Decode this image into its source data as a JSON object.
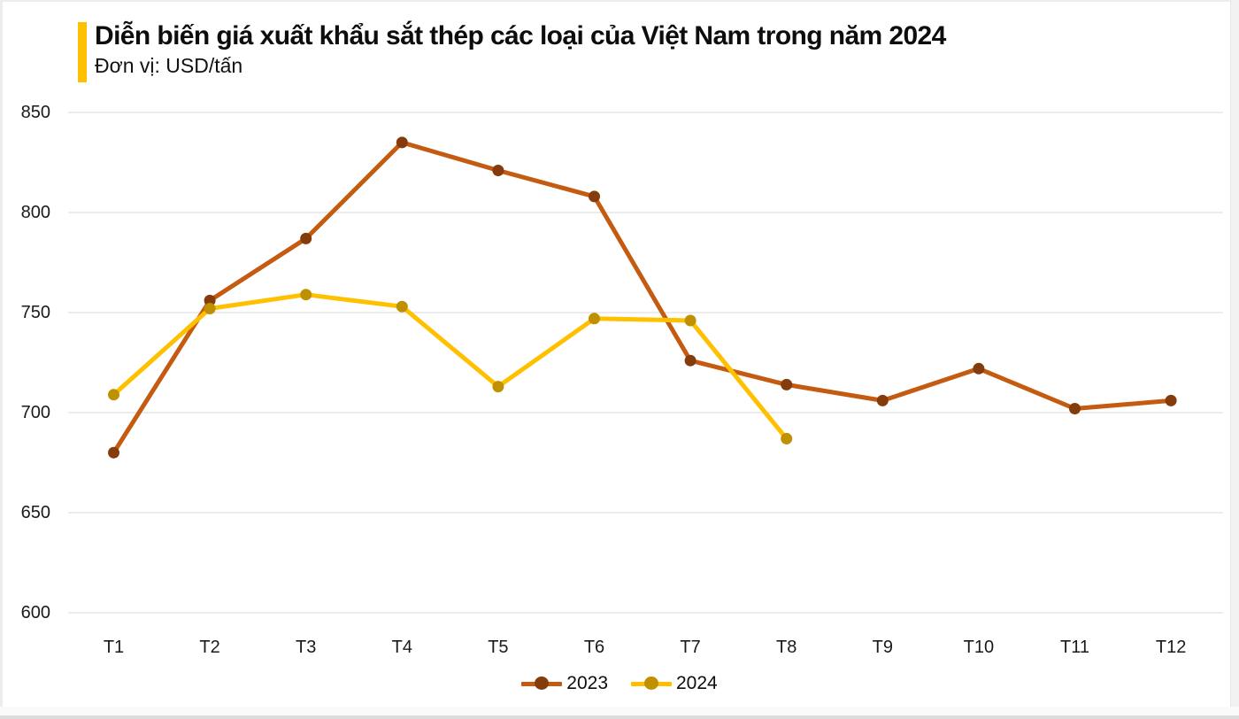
{
  "header": {
    "title": "Diễn biến giá xuất khẩu sắt thép các loại của Việt Nam trong năm 2024",
    "subtitle": "Đơn vị: USD/tấn",
    "accent_bar_color": "#FFC000"
  },
  "chart_data": {
    "type": "line",
    "categories": [
      "T1",
      "T2",
      "T3",
      "T4",
      "T5",
      "T6",
      "T7",
      "T8",
      "T9",
      "T10",
      "T11",
      "T12"
    ],
    "series": [
      {
        "name": "2023",
        "line_color": "#C55A11",
        "marker_color": "#843C0C",
        "values": [
          680,
          756,
          787,
          835,
          821,
          808,
          726,
          714,
          706,
          722,
          702,
          706
        ]
      },
      {
        "name": "2024",
        "line_color": "#FFC000",
        "marker_color": "#BF9000",
        "values": [
          709,
          752,
          759,
          753,
          713,
          747,
          746,
          687
        ]
      }
    ],
    "title": "Diễn biến giá xuất khẩu sắt thép các loại của Việt Nam trong năm 2024",
    "ylabel": "USD/tấn",
    "xlabel": "",
    "ylim": [
      600,
      850
    ],
    "yticks": [
      600,
      650,
      700,
      750,
      800,
      850
    ],
    "grid": true,
    "gridline_color": "#d9d9d9",
    "legend_position": "bottom-center",
    "legend_entries": [
      "2023",
      "2024"
    ]
  }
}
